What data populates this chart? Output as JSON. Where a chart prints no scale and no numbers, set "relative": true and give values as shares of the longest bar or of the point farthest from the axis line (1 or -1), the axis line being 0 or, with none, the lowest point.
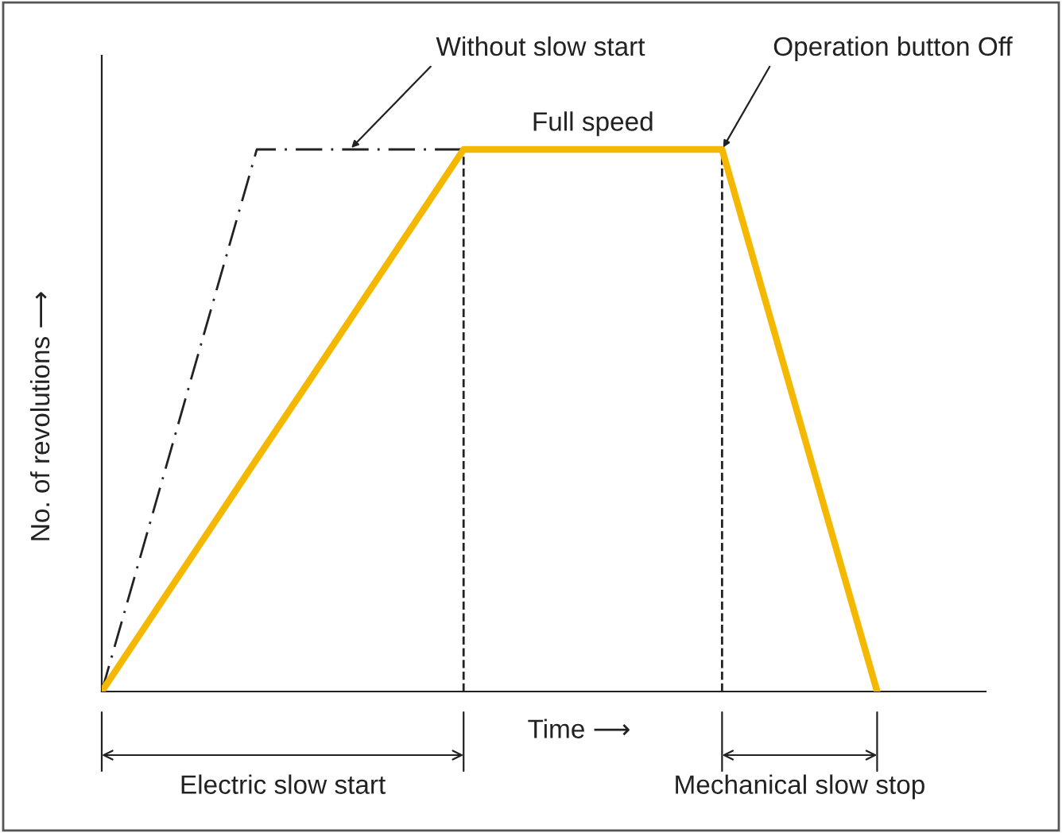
{
  "chart_data": {
    "type": "line",
    "relative": true,
    "xlabel": "Time ⟶",
    "ylabel": "No. of revolutions ⟶",
    "marker": "none",
    "categories": [
      null,
      null,
      null,
      null,
      null,
      null,
      null,
      null,
      null,
      null,
      null,
      null,
      null,
      null,
      null,
      null,
      null,
      null
    ],
    "series": [
      {
        "color": "#222222",
        "line_style": "dashdot",
        "values": [
          0,
          0.333,
          0.667,
          1,
          1,
          1,
          1,
          1,
          null,
          null,
          null,
          null,
          null,
          null,
          null,
          null,
          null,
          null
        ]
      },
      {
        "color": "#f5b800",
        "line_style": "solid",
        "values": [
          0,
          0.143,
          0.286,
          0.429,
          0.571,
          0.714,
          0.857,
          1,
          1,
          1,
          1,
          1,
          1,
          0.667,
          0.333,
          0,
          null,
          null
        ]
      }
    ],
    "annotations": [
      "Without slow start",
      "Full speed",
      "Operation button Off",
      "Electric slow start",
      "Mechanical slow stop"
    ]
  }
}
